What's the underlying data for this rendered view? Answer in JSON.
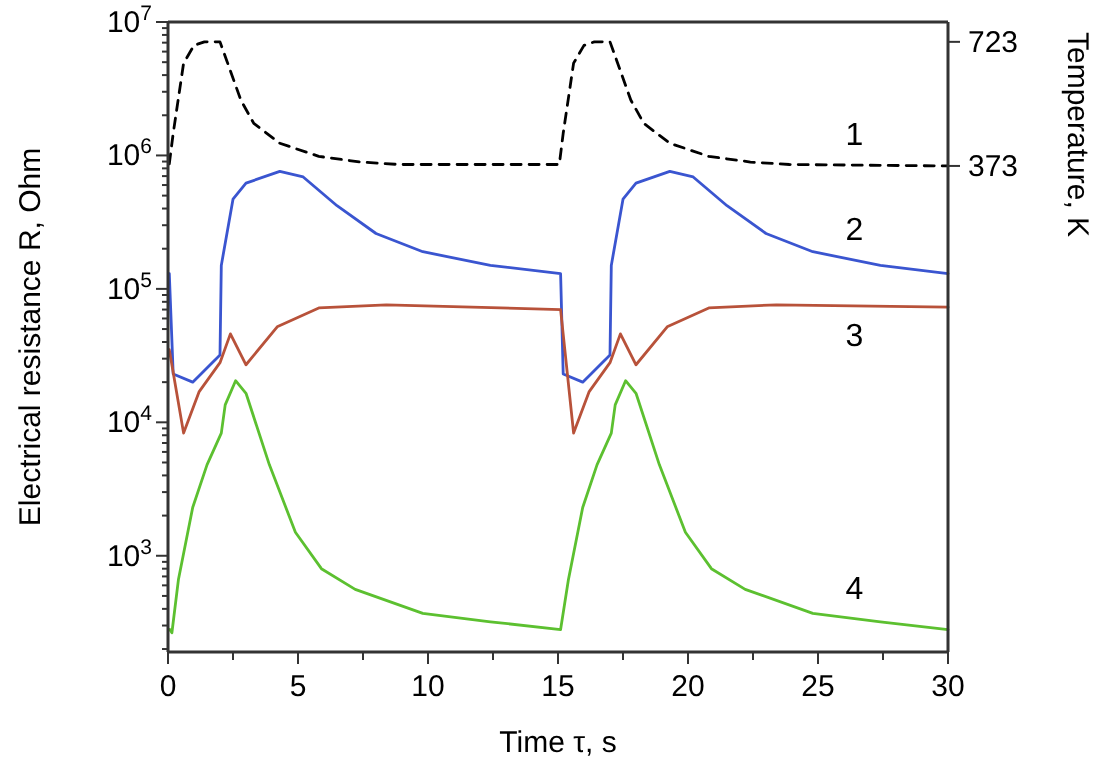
{
  "chart_data": {
    "type": "line",
    "xlabel": "Time τ, s",
    "ylabel": "Electrical resistance R, Ohm",
    "y2label": "Temperature, K",
    "log": "y",
    "grid": false,
    "marker": "none",
    "xlim": [
      0,
      30
    ],
    "xticks": [
      0,
      {
        "value": 2.5,
        "label": null
      },
      5,
      {
        "value": 7.5,
        "label": null
      },
      10,
      {
        "value": 12.5,
        "label": null
      },
      15,
      {
        "value": 17.5,
        "label": null
      },
      20,
      {
        "value": 22.5,
        "label": null
      },
      25,
      {
        "value": 27.5,
        "label": null
      },
      30
    ],
    "ylim": [
      190,
      10000000
    ],
    "yticks": [
      {
        "value": 200,
        "label": null
      },
      {
        "value": 300,
        "label": null
      },
      {
        "value": 400,
        "label": null
      },
      {
        "value": 500,
        "label": null
      },
      {
        "value": 600,
        "label": null
      },
      {
        "value": 700,
        "label": null
      },
      {
        "value": 800,
        "label": null
      },
      {
        "value": 900,
        "label": null
      },
      {
        "value": 1000,
        "label": "10$^{3}$"
      },
      {
        "value": 2000,
        "label": null
      },
      {
        "value": 3000,
        "label": null
      },
      {
        "value": 4000,
        "label": null
      },
      {
        "value": 5000,
        "label": null
      },
      {
        "value": 6000,
        "label": null
      },
      {
        "value": 7000,
        "label": null
      },
      {
        "value": 8000,
        "label": null
      },
      {
        "value": 9000,
        "label": null
      },
      {
        "value": 10000,
        "label": "10$^{4}$"
      },
      {
        "value": 20000,
        "label": null
      },
      {
        "value": 30000,
        "label": null
      },
      {
        "value": 40000,
        "label": null
      },
      {
        "value": 50000,
        "label": null
      },
      {
        "value": 60000,
        "label": null
      },
      {
        "value": 70000,
        "label": null
      },
      {
        "value": 80000,
        "label": null
      },
      {
        "value": 90000,
        "label": null
      },
      {
        "value": 100000,
        "label": "10$^{5}$"
      },
      {
        "value": 200000,
        "label": null
      },
      {
        "value": 300000,
        "label": null
      },
      {
        "value": 400000,
        "label": null
      },
      {
        "value": 500000,
        "label": null
      },
      {
        "value": 600000,
        "label": null
      },
      {
        "value": 700000,
        "label": null
      },
      {
        "value": 800000,
        "label": null
      },
      {
        "value": 900000,
        "label": null
      },
      {
        "value": 1000000,
        "label": "10$^{6}$"
      },
      {
        "value": 2000000,
        "label": null
      },
      {
        "value": 3000000,
        "label": null
      },
      {
        "value": 4000000,
        "label": null
      },
      {
        "value": 5000000,
        "label": null
      },
      {
        "value": 6000000,
        "label": null
      },
      {
        "value": 7000000,
        "label": null
      },
      {
        "value": 8000000,
        "label": null
      },
      {
        "value": 9000000,
        "label": null
      },
      {
        "value": 10000000,
        "label": "10$^{7}$"
      }
    ],
    "y2lim": [
      -998,
      779
    ],
    "y2ticks": [
      373,
      723
    ],
    "series": [
      {
        "name": "1",
        "color": "#000000",
        "axis": "y2",
        "line_style": "dashed",
        "x": [
          0.05,
          0.2,
          0.6,
          1.0,
          1.4,
          2.0,
          2.25,
          2.8,
          3.3,
          4.3,
          5.8,
          7.4,
          8.9,
          15.05,
          15.2,
          15.6,
          16.0,
          16.4,
          17.0,
          17.25,
          17.8,
          18.3,
          19.3,
          20.8,
          22.4,
          23.9,
          30
        ],
        "values": [
          379,
          465,
          663,
          713,
          723,
          723,
          672,
          559,
          493,
          437,
          400,
          384,
          377,
          377,
          465,
          663,
          713,
          723,
          723,
          672,
          559,
          493,
          437,
          400,
          384,
          377,
          373
        ]
      },
      {
        "name": "2",
        "color": "#3a55d0",
        "x": [
          0.05,
          0.2,
          0.95,
          2.0,
          2.05,
          2.5,
          3.0,
          4.3,
          5.2,
          6.5,
          8.0,
          9.8,
          12.4,
          15.1,
          15.2,
          15.95,
          17.0,
          17.05,
          17.5,
          18.0,
          19.3,
          20.2,
          21.5,
          23.0,
          24.8,
          27.4,
          30
        ],
        "values": [
          130000,
          23000,
          20000,
          32000,
          150000,
          470000,
          620000,
          760000,
          690000,
          420000,
          260000,
          190000,
          150000,
          130000,
          23000,
          20000,
          32000,
          150000,
          470000,
          620000,
          760000,
          690000,
          420000,
          260000,
          190000,
          150000,
          130000
        ]
      },
      {
        "name": "3",
        "color": "#b8523a",
        "x": [
          0.05,
          0.6,
          1.2,
          2.0,
          2.4,
          3.0,
          4.2,
          5.8,
          8.4,
          15.1,
          15.6,
          16.2,
          17.0,
          17.4,
          18.0,
          19.2,
          20.8,
          23.4,
          30
        ],
        "values": [
          35000,
          8300,
          17000,
          28000,
          46000,
          27000,
          52000,
          72000,
          76000,
          70000,
          8300,
          17000,
          28000,
          46000,
          27000,
          52000,
          72000,
          76000,
          73000
        ]
      },
      {
        "name": "4",
        "color": "#5cc030",
        "x": [
          0.07,
          0.15,
          0.4,
          0.95,
          1.5,
          2.05,
          2.2,
          2.6,
          3.0,
          3.9,
          4.9,
          5.9,
          7.2,
          9.8,
          12.4,
          15.1,
          15.4,
          15.95,
          16.5,
          17.05,
          17.2,
          17.6,
          18.0,
          18.9,
          19.9,
          20.9,
          22.2,
          24.8,
          27.4,
          30
        ],
        "values": [
          280,
          265,
          660,
          2300,
          4800,
          8300,
          13500,
          20500,
          16500,
          4800,
          1500,
          800,
          560,
          370,
          320,
          280,
          660,
          2300,
          4800,
          8300,
          13500,
          20500,
          16500,
          4800,
          1500,
          800,
          560,
          370,
          320,
          280
        ]
      }
    ]
  }
}
